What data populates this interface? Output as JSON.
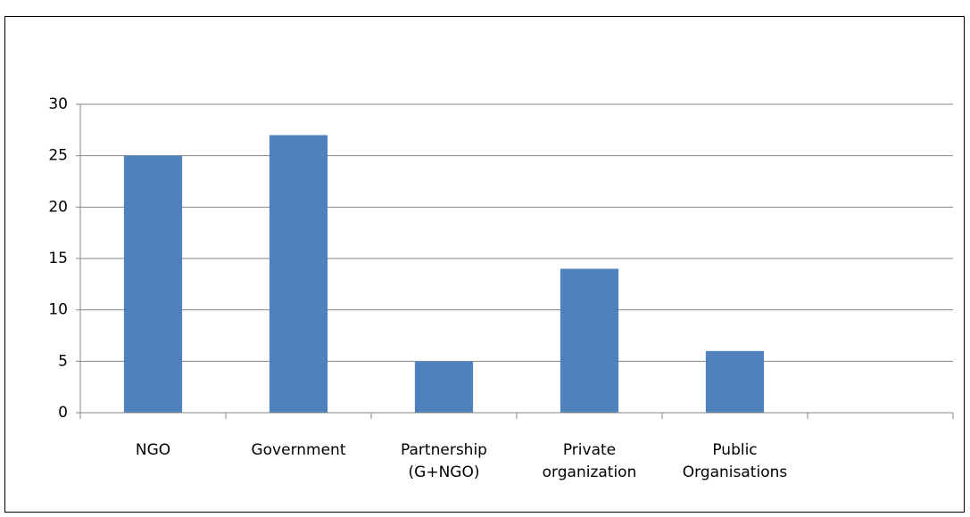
{
  "chart_data": {
    "type": "bar",
    "categories": [
      "NGO",
      "Government",
      "Partnership (G+NGO)",
      "Private organization",
      "Public Organisations",
      null
    ],
    "values": [
      25,
      27,
      5,
      14,
      6,
      null
    ],
    "color": "#4f81bd",
    "ylim": [
      0,
      30
    ],
    "yticks": [
      0,
      5,
      10,
      15,
      20,
      25,
      30
    ],
    "grid": true
  }
}
